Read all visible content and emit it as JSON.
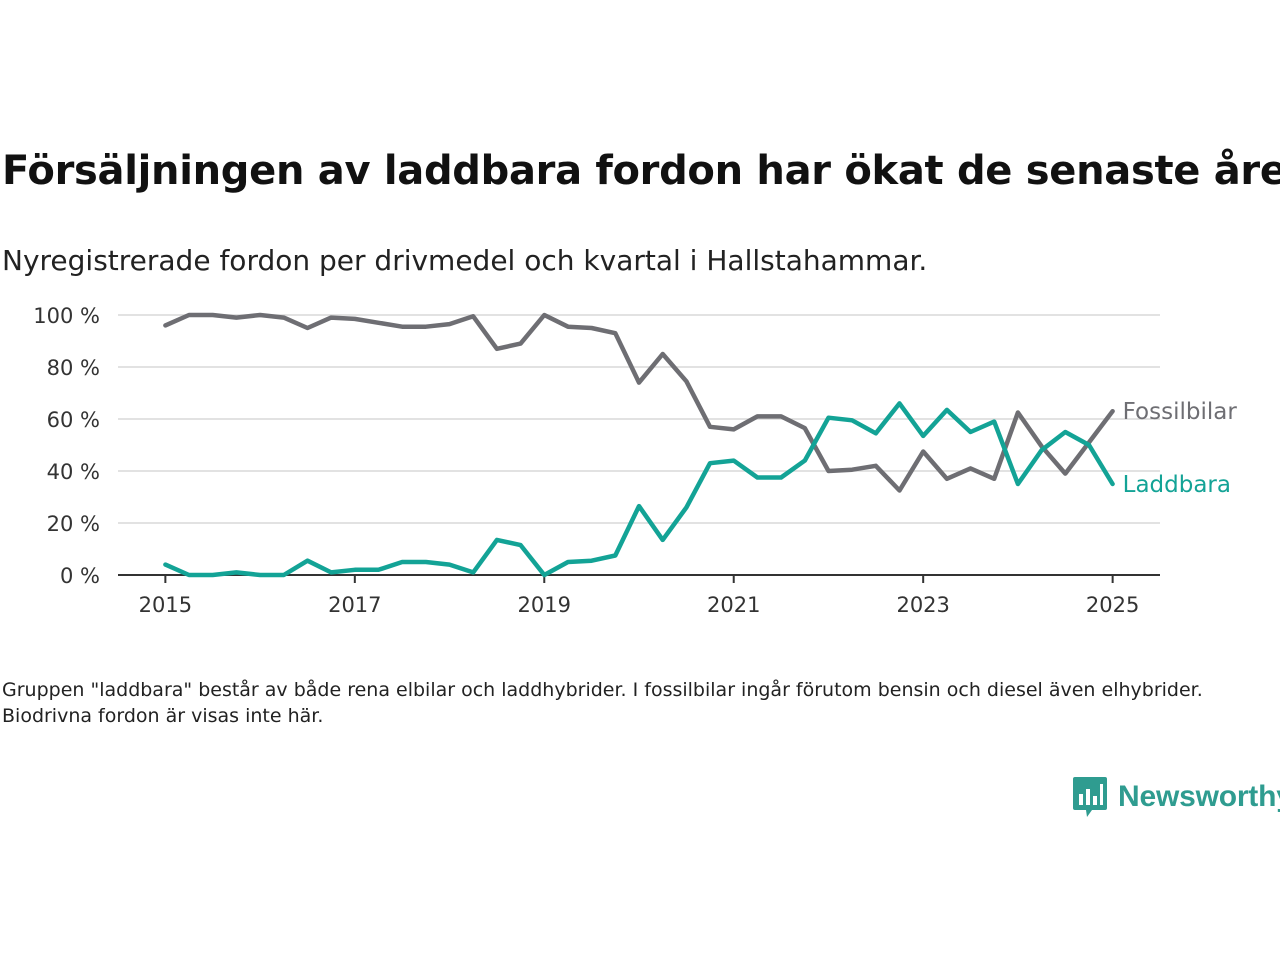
{
  "title": "Försäljningen av laddbara fordon har ökat de senaste åren",
  "subtitle": "Nyregistrerade fordon per drivmedel och kvartal i Hallstahammar.",
  "note": "Gruppen \"laddbara\" består av både rena elbilar och laddhybrider. I fossilbilar ingår förutom bensin och diesel även elhybrider. Biodrivna fordon är visas inte här.",
  "brand": {
    "name": "Newsworthy",
    "icon": "newsworthy-logo-icon",
    "color": "#2f9c90"
  },
  "chart_data": {
    "type": "line",
    "x_unit": "year",
    "x": [
      2015.0,
      2015.25,
      2015.5,
      2015.75,
      2016.0,
      2016.25,
      2016.5,
      2016.75,
      2017.0,
      2017.25,
      2017.5,
      2017.75,
      2018.0,
      2018.25,
      2018.5,
      2018.75,
      2019.0,
      2019.25,
      2019.5,
      2019.75,
      2020.0,
      2020.25,
      2020.5,
      2020.75,
      2021.0,
      2021.25,
      2021.5,
      2021.75,
      2022.0,
      2022.25,
      2022.5,
      2022.75,
      2023.0,
      2023.25,
      2023.5,
      2023.75,
      2024.0,
      2024.25,
      2024.5,
      2024.75,
      2025.0
    ],
    "series": [
      {
        "name": "Fossilbilar",
        "color": "#6e6e73",
        "values": [
          96,
          100,
          100,
          99,
          100,
          99,
          95,
          99,
          98.5,
          97,
          95.5,
          95.5,
          96.5,
          99.5,
          87,
          89,
          100,
          95.5,
          95,
          93,
          74,
          85,
          74.5,
          57,
          56,
          61,
          61,
          56.5,
          40,
          40.5,
          42,
          32.5,
          47.5,
          37,
          41,
          37,
          62.5,
          49.5,
          39,
          51,
          63
        ]
      },
      {
        "name": "Laddbara",
        "color": "#13a396",
        "values": [
          4,
          0,
          0,
          1,
          0,
          0,
          5.5,
          1,
          2,
          2,
          5,
          5,
          4,
          1,
          13.5,
          11.5,
          0,
          5,
          5.5,
          7.5,
          26.5,
          13.5,
          26,
          43,
          44,
          37.5,
          37.5,
          44,
          60.5,
          59.5,
          54.5,
          66,
          53.5,
          63.5,
          55,
          59,
          35,
          48,
          55,
          50,
          35
        ]
      }
    ],
    "y_ticks": [
      "0 %",
      "20 %",
      "40 %",
      "60 %",
      "80 %",
      "100 %"
    ],
    "y_tick_values": [
      0,
      20,
      40,
      60,
      80,
      100
    ],
    "x_ticks": [
      "2015",
      "2017",
      "2019",
      "2021",
      "2023",
      "2025"
    ],
    "x_tick_values": [
      2015,
      2017,
      2019,
      2021,
      2023,
      2025
    ],
    "ylim": [
      0,
      100
    ],
    "xlim": [
      2014.5,
      2025.5
    ],
    "grid": "horizontal",
    "legend": "direct labels at line ends, right"
  }
}
